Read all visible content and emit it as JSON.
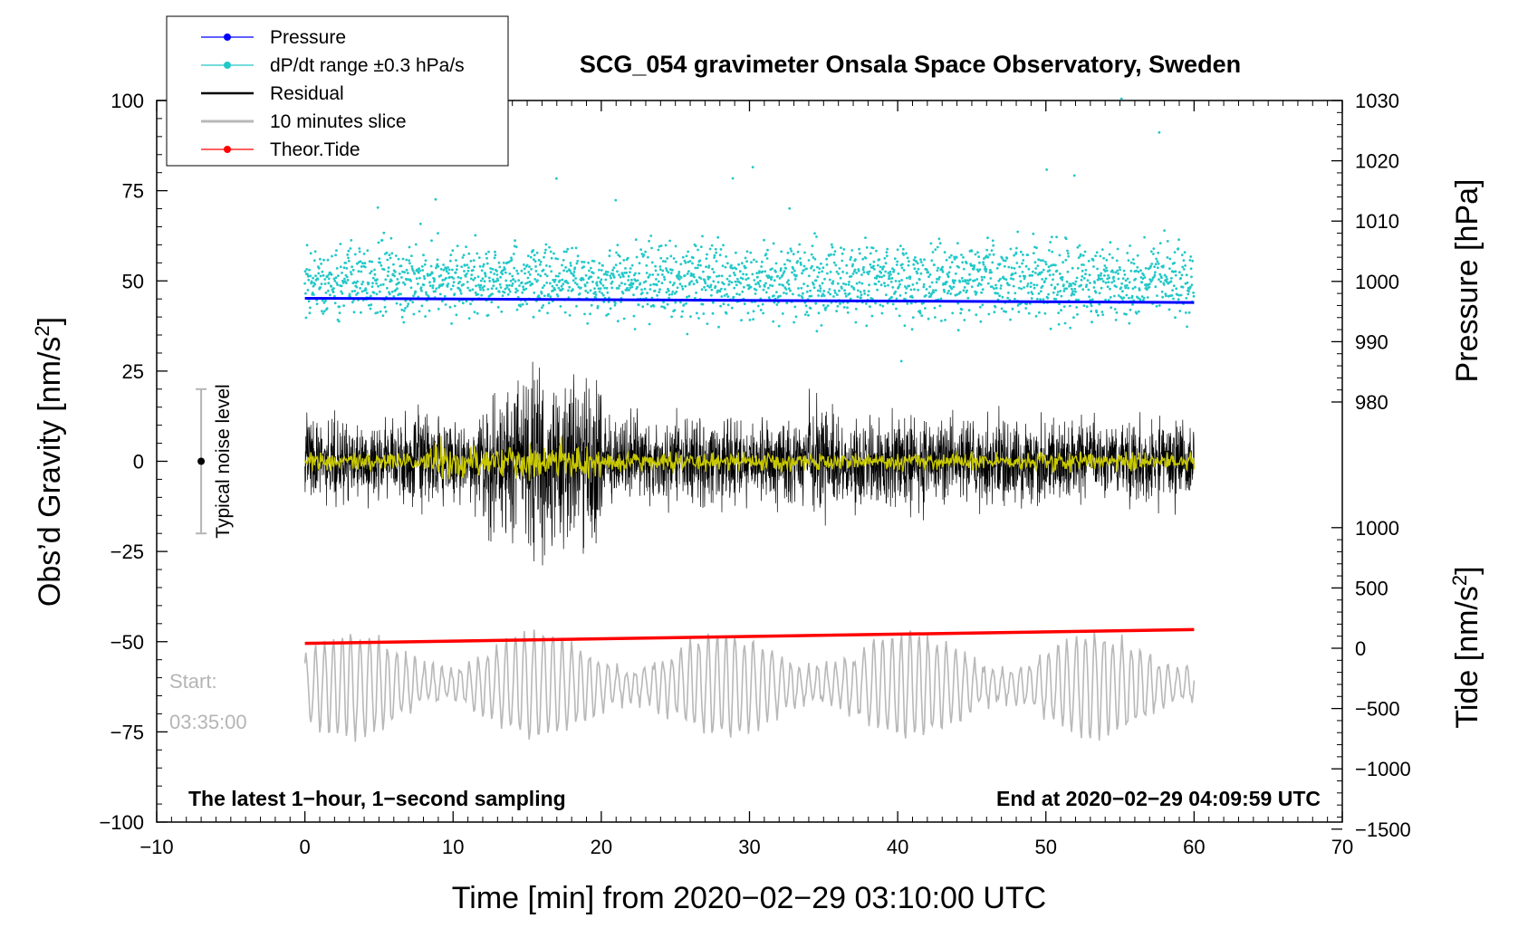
{
  "chart_data": {
    "type": "line",
    "title": "SCG_054 gravimeter Onsala Space Observatory, Sweden",
    "xlabel": "Time [min] from 2020−02−29 03:10:00 UTC",
    "ylabel_left": "Obs’d Gravity [nm/s",
    "ylabel_left_sup": "2",
    "ylabel_left_close": "]",
    "ylabel_right_pressure": "Pressure [hPa]",
    "ylabel_right_tide": "Tide [nm/s",
    "ylabel_right_tide_sup": "2",
    "ylabel_right_tide_close": "]",
    "xlim": [
      -10,
      70
    ],
    "ylim_left": [
      -100,
      100
    ],
    "x_ticks": [
      -10,
      0,
      10,
      20,
      30,
      40,
      50,
      60,
      70
    ],
    "x_tick_labels": [
      "−10",
      "0",
      "10",
      "20",
      "30",
      "40",
      "50",
      "60",
      "70"
    ],
    "y_ticks": [
      100,
      75,
      50,
      25,
      0,
      -25,
      -50,
      -75,
      -100
    ],
    "y_tick_labels": [
      "100",
      "75",
      "50",
      "25",
      "0",
      "−25",
      "−50",
      "−75",
      "−100"
    ],
    "pressure_ticks": [
      1030,
      1020,
      1010,
      1000,
      990,
      980
    ],
    "pressure_tick_labels": [
      "1030",
      "1020",
      "1010",
      "1000",
      "990",
      "980"
    ],
    "tide_ticks": [
      1000,
      500,
      0,
      -500,
      -1000,
      -1500
    ],
    "tide_tick_labels": [
      "1000",
      "500",
      "0",
      "−500",
      "−1000",
      "−1500"
    ],
    "legend": {
      "placement": "top-left",
      "entries": [
        {
          "label": "Pressure",
          "color": "#0000ff",
          "marker": true
        },
        {
          "label": "dP/dt range ±0.3 hPa/s",
          "color": "#22c8c8",
          "marker": true
        },
        {
          "label": "Residual",
          "color": "#000000",
          "marker": false
        },
        {
          "label": "10 minutes slice",
          "color": "#b8b8b8",
          "marker": false
        },
        {
          "label": "Theor.Tide",
          "color": "#ff0000",
          "marker": true
        }
      ]
    },
    "series": [
      {
        "name": "Pressure",
        "color": "#0000ff",
        "axis": "pressure",
        "x": [
          0,
          60
        ],
        "values": [
          997.2,
          996.5
        ]
      },
      {
        "name": "dP/dt range ±0.3 hPa/s",
        "color": "#22c8c8",
        "axis": "left",
        "kind": "scatter",
        "center": 50,
        "spread": 9
      },
      {
        "name": "Residual",
        "color": "#000000",
        "axis": "left",
        "center": 0,
        "spread": 10
      },
      {
        "name": "Residual smoothed",
        "color": "#c8c800",
        "axis": "left",
        "center": 0,
        "spread": 2
      },
      {
        "name": "10 minutes slice",
        "color": "#b8b8b8",
        "axis": "left",
        "center": -62,
        "spread": 8
      },
      {
        "name": "Theor.Tide",
        "color": "#ff0000",
        "axis": "tide",
        "x": [
          0,
          60
        ],
        "values": [
          40,
          155
        ]
      }
    ],
    "noise_indicator": {
      "label": "Typical noise level",
      "center": 0,
      "half_range": 20,
      "x": -7
    }
  },
  "annotations": {
    "start_label": "Start:",
    "start_time": "03:35:00",
    "bottom_left": "The latest 1−hour, 1−second sampling",
    "bottom_right": "End at 2020−02−29 04:09:59 UTC"
  },
  "colors": {
    "pressure": "#0000ff",
    "dpdt": "#22c8c8",
    "residual": "#000000",
    "smoothed": "#c8c800",
    "slice": "#b8b8b8",
    "tide": "#ff0000"
  }
}
